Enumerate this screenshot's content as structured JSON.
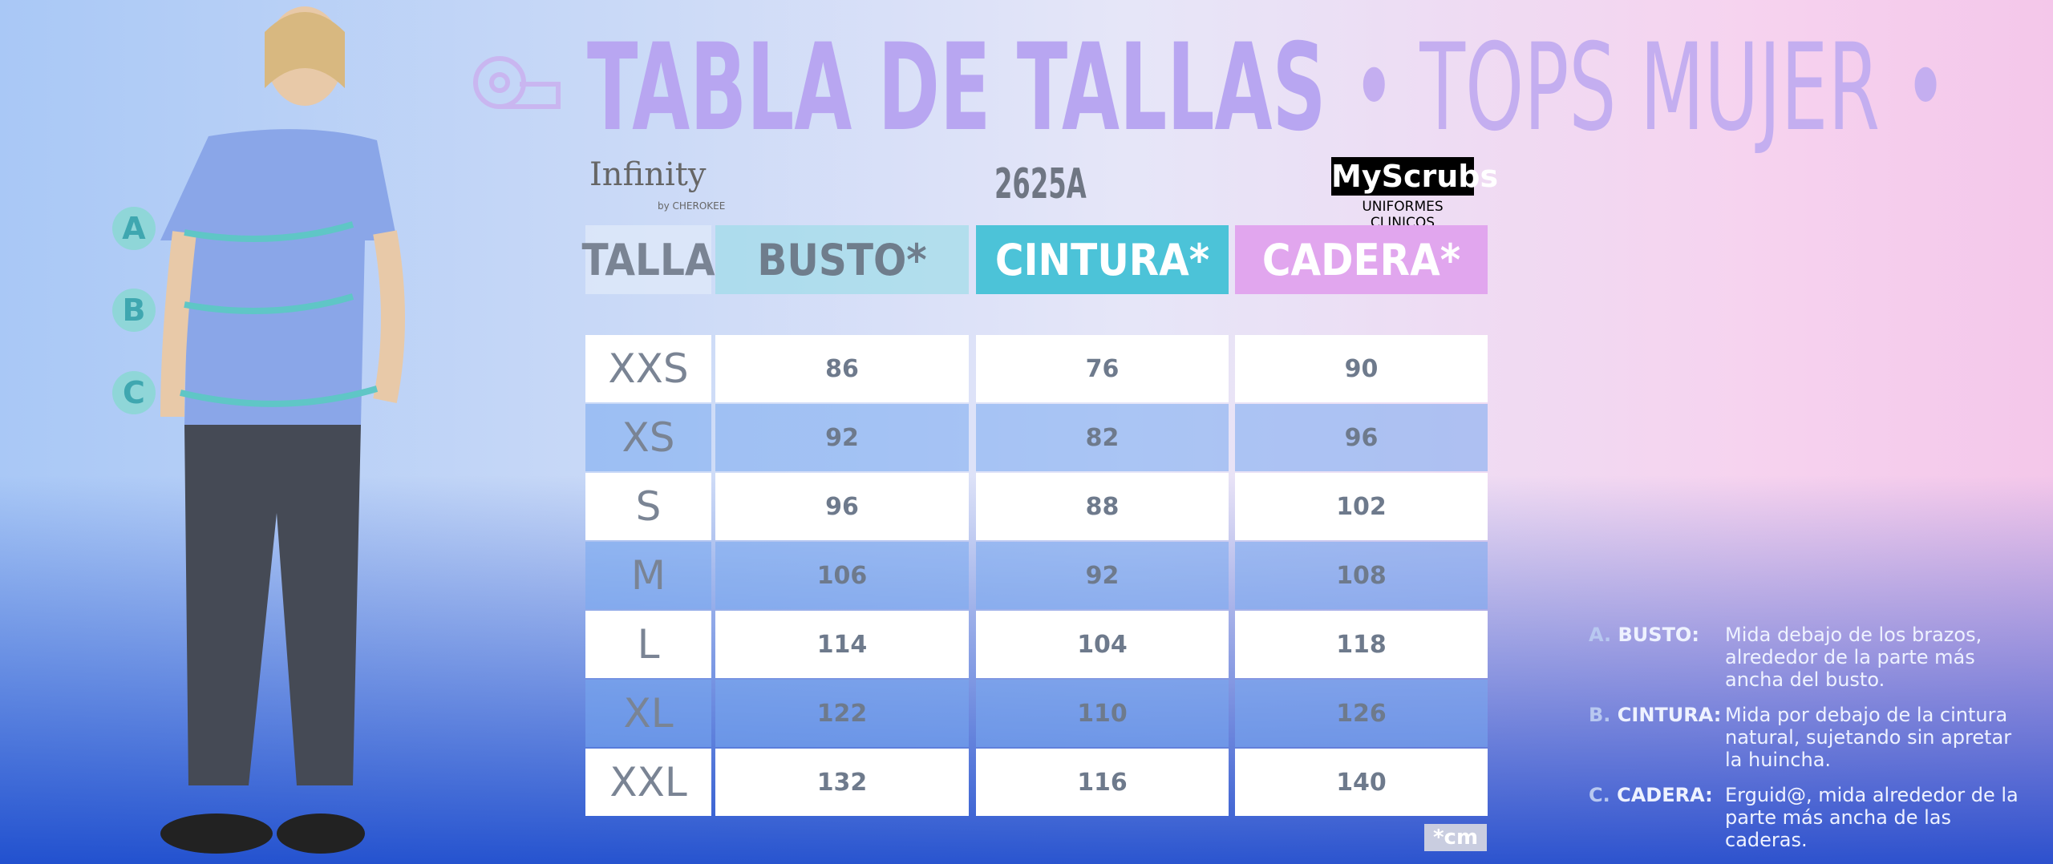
{
  "header": {
    "title": "TABLA DE TALLAS",
    "subtitle": "• TOPS MUJER •",
    "brand": "Infinity",
    "brand_sub": "by CHEROKEE",
    "model": "2625A",
    "logo": "MyScrubs",
    "logo_sub": "UNIFORMES CLINICOS"
  },
  "figure": {
    "markers": [
      "A",
      "B",
      "C"
    ]
  },
  "table": {
    "header": [
      "TALLA",
      "BUSTO*",
      "CINTURA*",
      "CADERA*"
    ],
    "rows": [
      [
        "XXS",
        86,
        76,
        90
      ],
      [
        "XS",
        92,
        82,
        96
      ],
      [
        "S",
        96,
        88,
        102
      ],
      [
        "M",
        106,
        92,
        108
      ],
      [
        "L",
        114,
        104,
        118
      ],
      [
        "XL",
        122,
        110,
        126
      ],
      [
        "XXL",
        132,
        116,
        140
      ]
    ],
    "unit": "*cm"
  },
  "notes": [
    {
      "letter": "A.",
      "term": "BUSTO:",
      "text": "Mida debajo de los brazos, alrededor de la parte más ancha del busto."
    },
    {
      "letter": "B.",
      "term": "CINTURA:",
      "text": "Mida por debajo de la cintura natural, sujetando sin apretar la huincha."
    },
    {
      "letter": "C.",
      "term": "CADERA:",
      "text": "Erguid@, mida alrededor de la parte más ancha de las caderas."
    }
  ]
}
